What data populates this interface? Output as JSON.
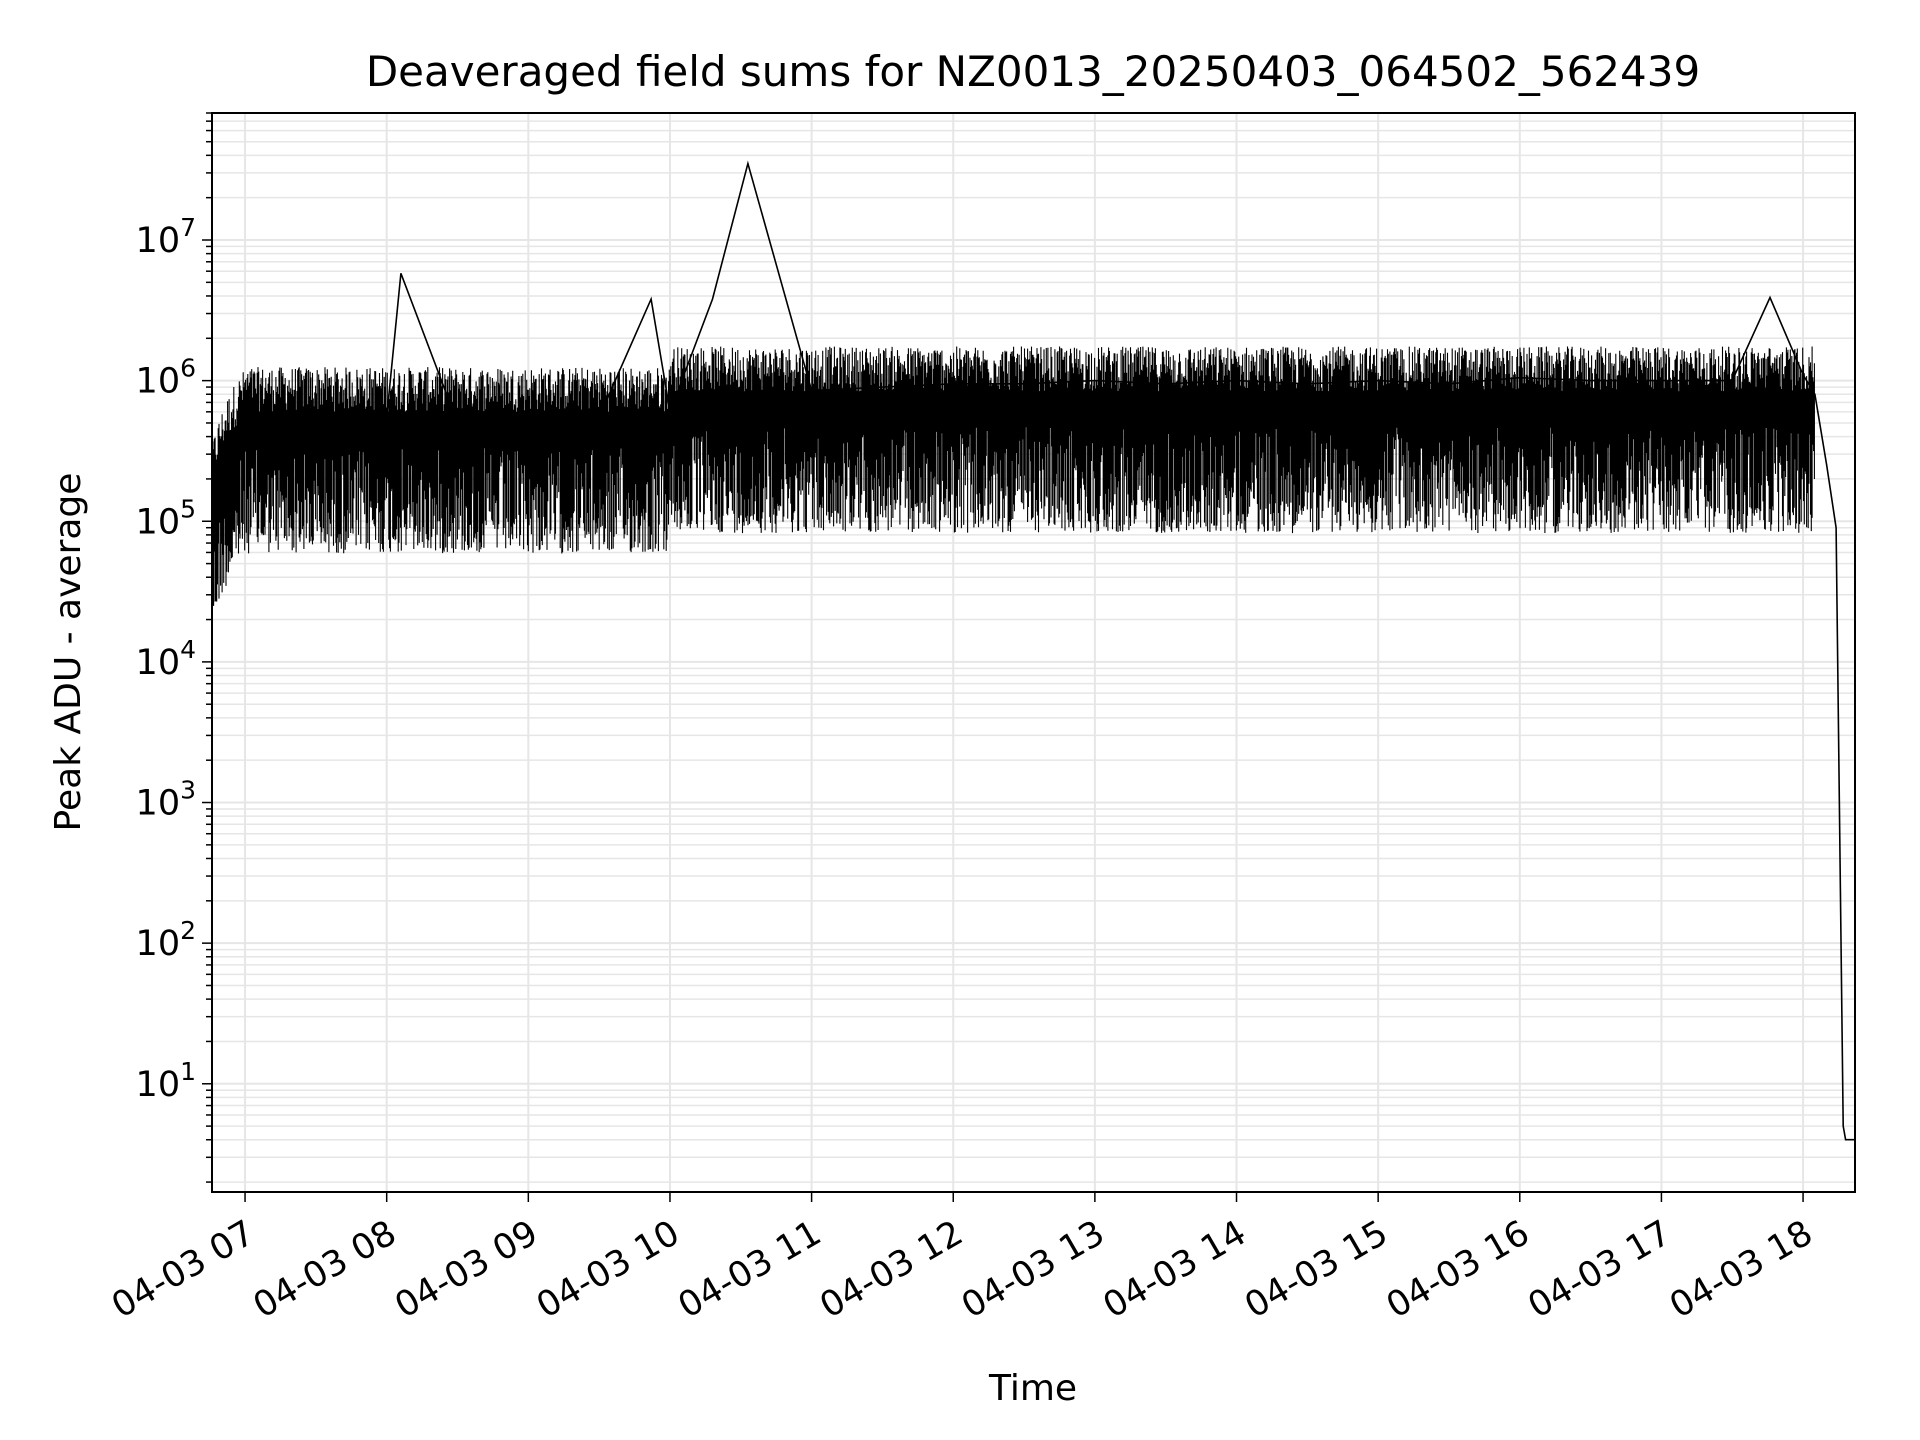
{
  "chart_data": {
    "type": "line",
    "title": "Deaveraged field sums for NZ0013_20250403_064502_562439",
    "xlabel": "Time",
    "ylabel": "Peak ADU - average",
    "yscale": "log",
    "ylim": [
      1.7,
      80000000
    ],
    "xlim": [
      "2025-04-03 06:46",
      "2025-04-03 18:22"
    ],
    "grid": "on (major and minor, light gray)",
    "line_color": "#000000",
    "x_ticks": [
      {
        "value": "2025-04-03 07:00",
        "label": "04-03 07"
      },
      {
        "value": "2025-04-03 08:00",
        "label": "04-03 08"
      },
      {
        "value": "2025-04-03 09:00",
        "label": "04-03 09"
      },
      {
        "value": "2025-04-03 10:00",
        "label": "04-03 10"
      },
      {
        "value": "2025-04-03 11:00",
        "label": "04-03 11"
      },
      {
        "value": "2025-04-03 12:00",
        "label": "04-03 12"
      },
      {
        "value": "2025-04-03 13:00",
        "label": "04-03 13"
      },
      {
        "value": "2025-04-03 14:00",
        "label": "04-03 14"
      },
      {
        "value": "2025-04-03 15:00",
        "label": "04-03 15"
      },
      {
        "value": "2025-04-03 16:00",
        "label": "04-03 16"
      },
      {
        "value": "2025-04-03 17:00",
        "label": "04-03 17"
      },
      {
        "value": "2025-04-03 18:00",
        "label": "04-03 18"
      }
    ],
    "y_ticks": [
      {
        "value": 10,
        "base": "10",
        "exp": "1"
      },
      {
        "value": 100,
        "base": "10",
        "exp": "2"
      },
      {
        "value": 1000,
        "base": "10",
        "exp": "3"
      },
      {
        "value": 10000,
        "base": "10",
        "exp": "4"
      },
      {
        "value": 100000,
        "base": "10",
        "exp": "5"
      },
      {
        "value": 1000000,
        "base": "10",
        "exp": "6"
      },
      {
        "value": 10000000,
        "base": "10",
        "exp": "7"
      }
    ],
    "series": [
      {
        "x": [
          "2025-04-03 06:46",
          "2025-04-03 06:50",
          "2025-04-03 06:55",
          "2025-04-03 07:00",
          "2025-04-03 07:10",
          "2025-04-03 07:30",
          "2025-04-03 08:00",
          "2025-04-03 08:06",
          "2025-04-03 08:30",
          "2025-04-03 09:00",
          "2025-04-03 09:30",
          "2025-04-03 09:52",
          "2025-04-03 10:00",
          "2025-04-03 10:18",
          "2025-04-03 10:33",
          "2025-04-03 11:00",
          "2025-04-03 11:30",
          "2025-04-03 12:00",
          "2025-04-03 12:30",
          "2025-04-03 13:00",
          "2025-04-03 13:30",
          "2025-04-03 14:00",
          "2025-04-03 14:30",
          "2025-04-03 15:00",
          "2025-04-03 15:30",
          "2025-04-03 16:00",
          "2025-04-03 16:30",
          "2025-04-03 17:00",
          "2025-04-03 17:30",
          "2025-04-03 17:46",
          "2025-04-03 18:00",
          "2025-04-03 18:05",
          "2025-04-03 18:10",
          "2025-04-03 18:14",
          "2025-04-03 18:17",
          "2025-04-03 18:18",
          "2025-04-03 18:22"
        ],
        "y": [
          100000,
          180000,
          260000,
          500000,
          450000,
          400000,
          550000,
          5800000,
          500000,
          450000,
          550000,
          3800000,
          600000,
          3800000,
          35000000,
          850000,
          900000,
          950000,
          950000,
          1000000,
          950000,
          1000000,
          950000,
          1000000,
          950000,
          1050000,
          1000000,
          1000000,
          1000000,
          3900000,
          1100000,
          800000,
          250000,
          90000,
          5,
          4,
          4
        ]
      }
    ]
  }
}
